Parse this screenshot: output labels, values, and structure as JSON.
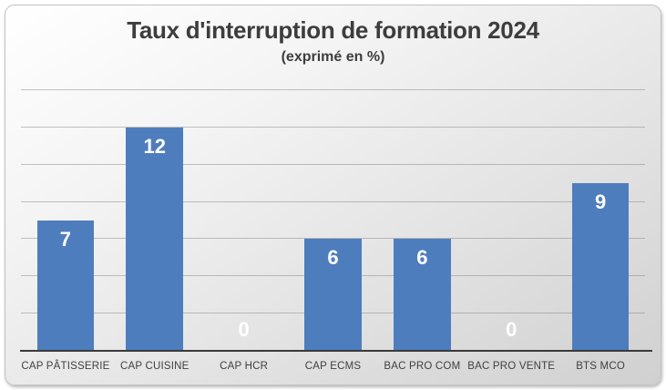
{
  "chart": {
    "title": "Taux d'interruption de formation 2024",
    "subtitle": "(exprimé en %)"
  },
  "chart_data": {
    "type": "bar",
    "title": "Taux d'interruption de formation 2024",
    "subtitle": "(exprimé en %)",
    "categories": [
      "CAP PÂTISSERIE",
      "CAP CUISINE",
      "CAP HCR",
      "CAP ECMS",
      "BAC PRO COM",
      "BAC PRO VENTE",
      "BTS MCO"
    ],
    "values": [
      7,
      12,
      0,
      6,
      6,
      0,
      9
    ],
    "xlabel": "",
    "ylabel": "",
    "ylim": [
      0,
      14
    ],
    "grid_step": 2,
    "grid": true,
    "y_tick_labels_visible": false,
    "legend": "none",
    "data_label_position": "inside-end",
    "data_label_color": "#ffffff",
    "bar_color": "#4E7DBE",
    "axis_line_color": "#3a3a3a",
    "gridline_color": "#7d7d7d",
    "text_color": "#3d3d3d"
  }
}
